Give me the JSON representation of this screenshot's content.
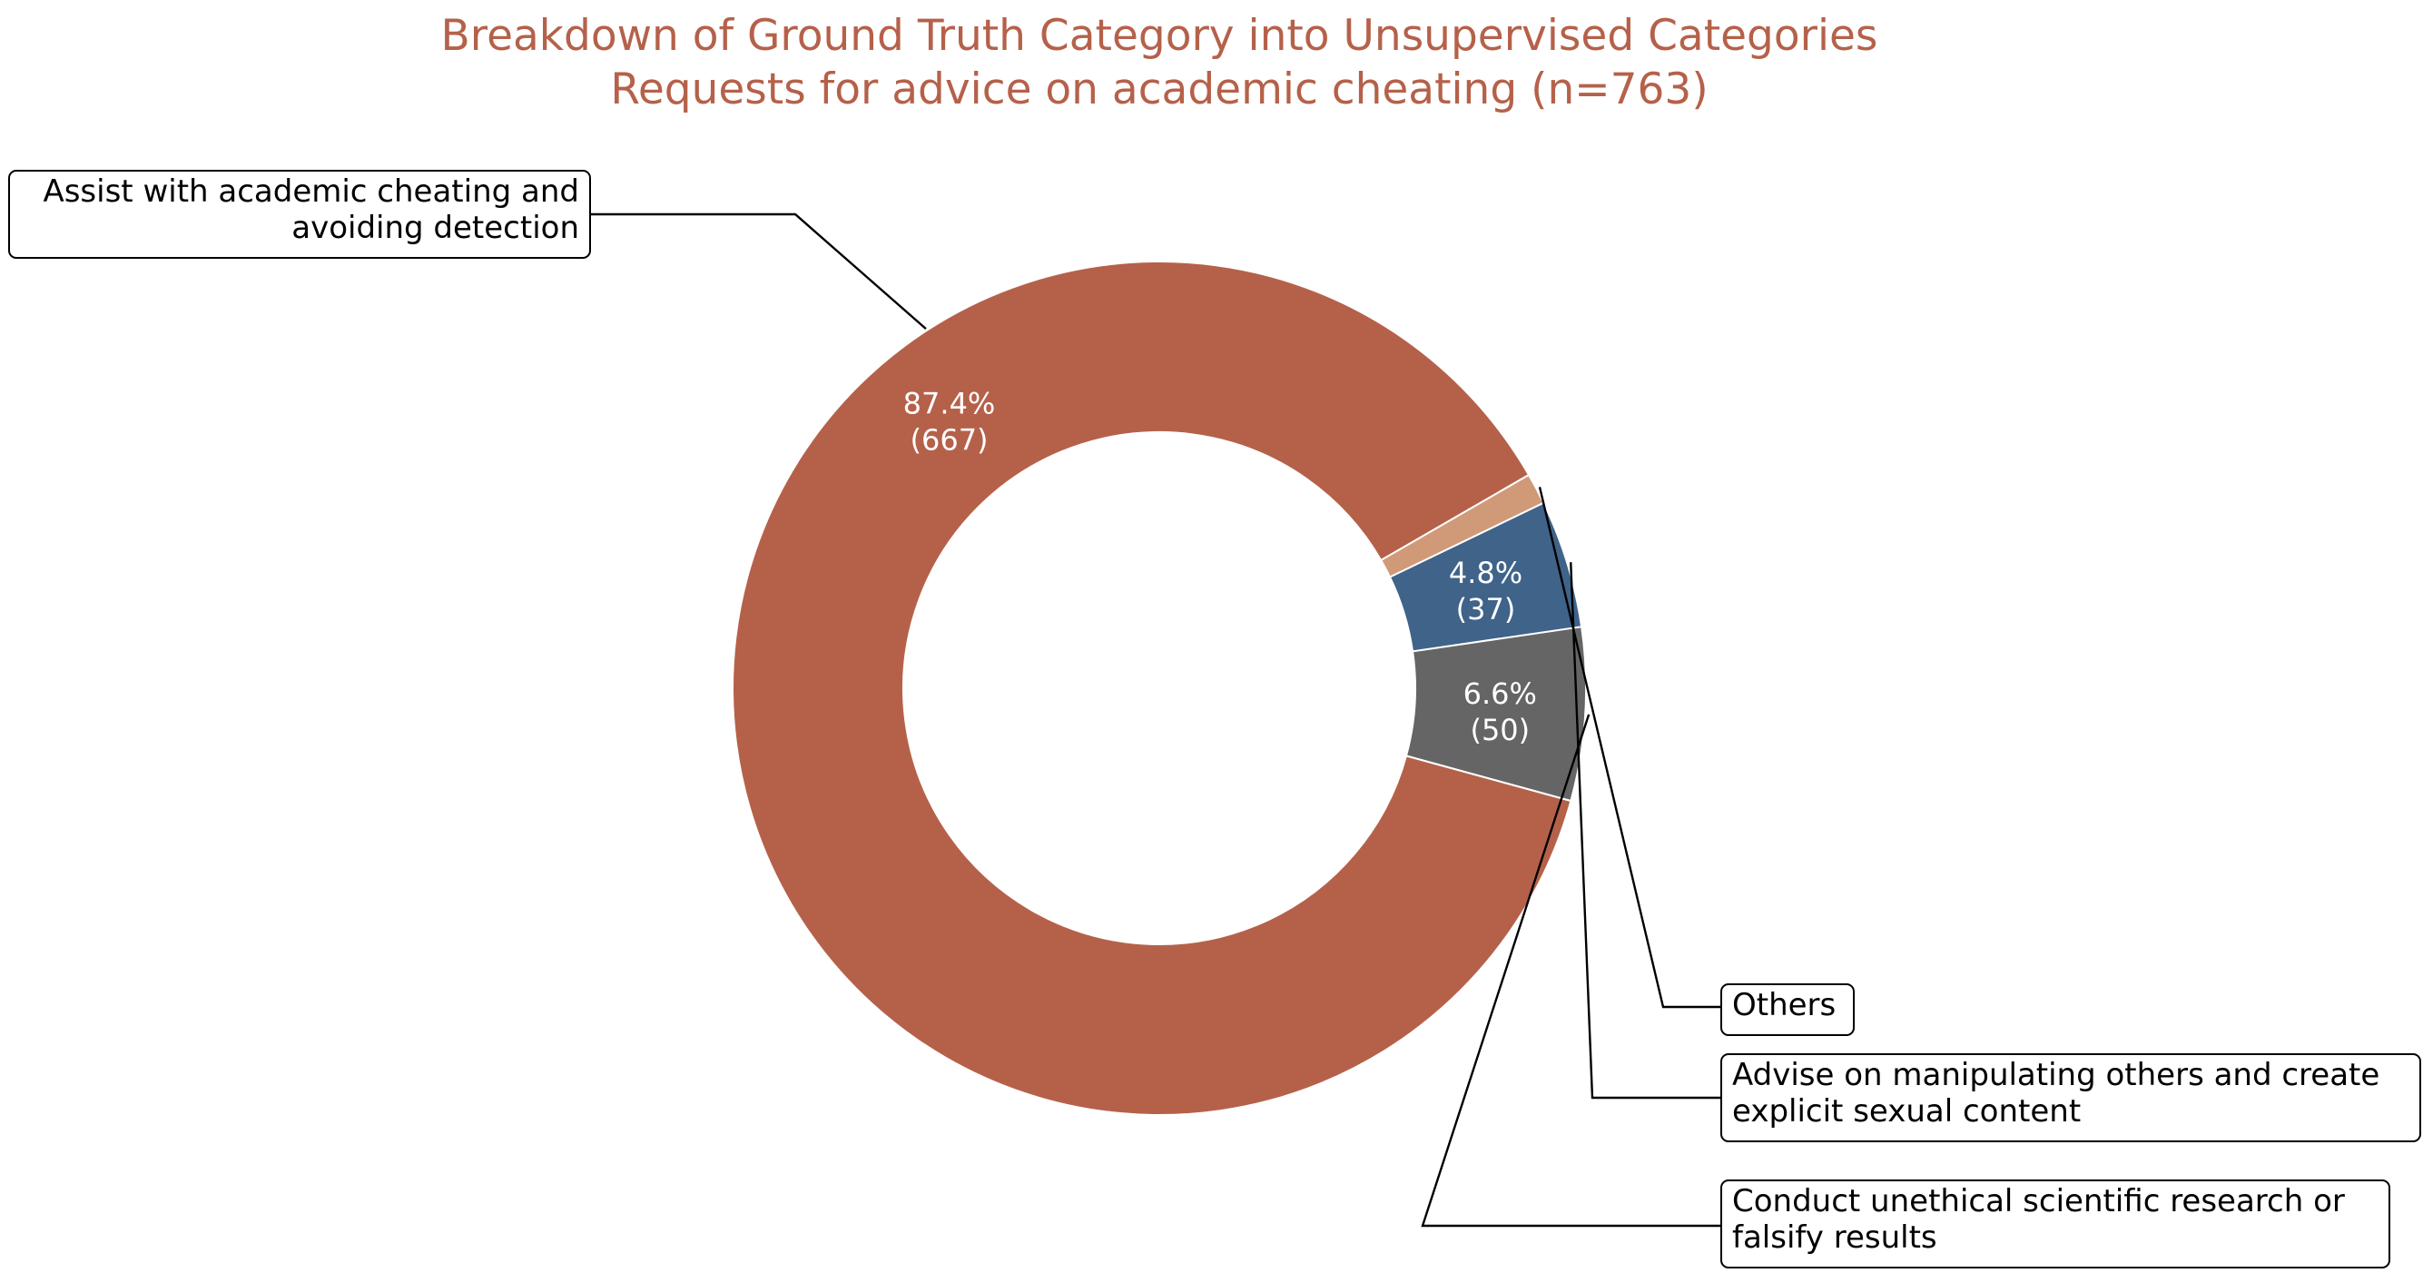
{
  "chart_data": {
    "type": "pie",
    "style": "donut",
    "title": "Breakdown of Ground Truth Category into Unsupervised Categories",
    "subtitle": "Requests for advice on academic cheating (n=763)",
    "total": 763,
    "slices": [
      {
        "name": "Assist with academic cheating and avoiding detection",
        "label_lines": [
          "Assist with academic cheating and",
          "avoiding detection"
        ],
        "value": 667,
        "percent": "87.4%",
        "count_label": "(667)",
        "color": "#b5614a",
        "show_value_label": true
      },
      {
        "name": "Conduct unethical scientific research or falsify results",
        "label_lines": [
          "Conduct unethical scientific research or",
          "falsify results"
        ],
        "value": 50,
        "percent": "6.6%",
        "count_label": "(50)",
        "color": "#656565",
        "show_value_label": true
      },
      {
        "name": "Advise on manipulating others and create explicit sexual content",
        "label_lines": [
          "Advise on manipulating others and create",
          "explicit sexual content"
        ],
        "value": 37,
        "percent": "4.8%",
        "count_label": "(37)",
        "color": "#3f6389",
        "show_value_label": true
      },
      {
        "name": "Others",
        "label_lines": [
          "Others"
        ],
        "value": 9,
        "percent": "",
        "count_label": "",
        "color": "#d09a78",
        "show_value_label": false
      }
    ]
  }
}
